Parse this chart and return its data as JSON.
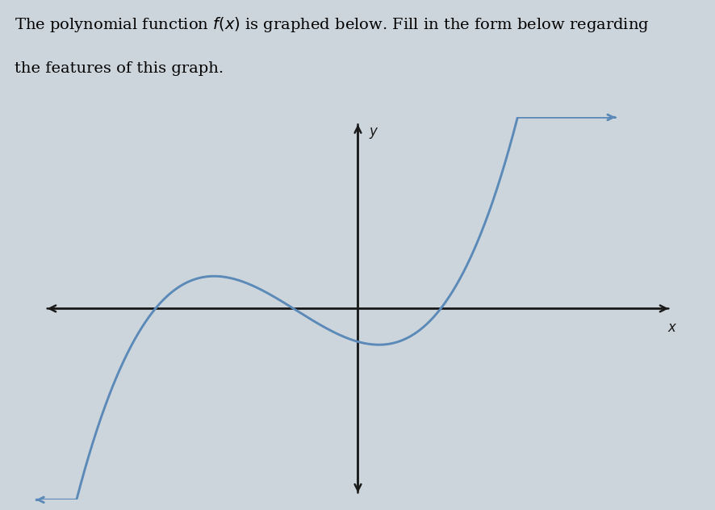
{
  "title_line1": "The polynomial function ",
  "title_line2": " is graphed below. Fill in the form below regarding",
  "title_line3": "the features of this graph.",
  "title_fontsize": 14,
  "curve_color": "#5b8ab8",
  "curve_linewidth": 2.1,
  "axis_color": "#1a1a1a",
  "background_color": "#cdd5dc",
  "xlabel": "x",
  "ylabel": "y",
  "xlim": [
    -3.5,
    3.5
  ],
  "ylim": [
    -4.0,
    4.0
  ],
  "axis_label_fontsize": 12,
  "figsize": [
    8.87,
    6.32
  ],
  "dpi": 100
}
